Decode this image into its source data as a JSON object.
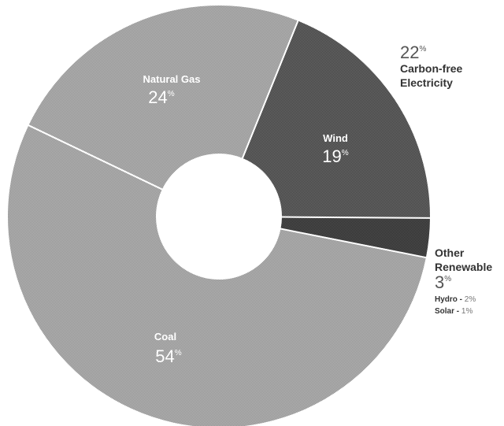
{
  "chart_data": {
    "type": "pie",
    "categories": [
      "Coal",
      "Natural Gas",
      "Wind",
      "Other Renewable"
    ],
    "values": [
      54,
      24,
      19,
      3
    ],
    "units": "%",
    "labels": {
      "coal": {
        "name": "Coal",
        "pct": "54",
        "sup": "%"
      },
      "gas": {
        "name": "Natural Gas",
        "pct": "24",
        "sup": "%"
      },
      "wind": {
        "name": "Wind",
        "pct": "19",
        "sup": "%"
      }
    },
    "annotations": {
      "carbon_free": {
        "pct": "22",
        "sup": "%",
        "line1": "Carbon-free",
        "line2": "Electricity"
      },
      "other": {
        "line1": "Other",
        "line2": "Renewable",
        "pct": "3",
        "sup": "%",
        "hydro_label": "Hydro - ",
        "hydro_pct": "2%",
        "solar_label": "Solar - ",
        "solar_pct": "1%"
      }
    },
    "colors": {
      "coal": "#a7a7a7",
      "gas": "#a9a9a9",
      "wind": "#5b5b5b",
      "other": "#3f3f3f",
      "separator": "#ffffff"
    }
  }
}
